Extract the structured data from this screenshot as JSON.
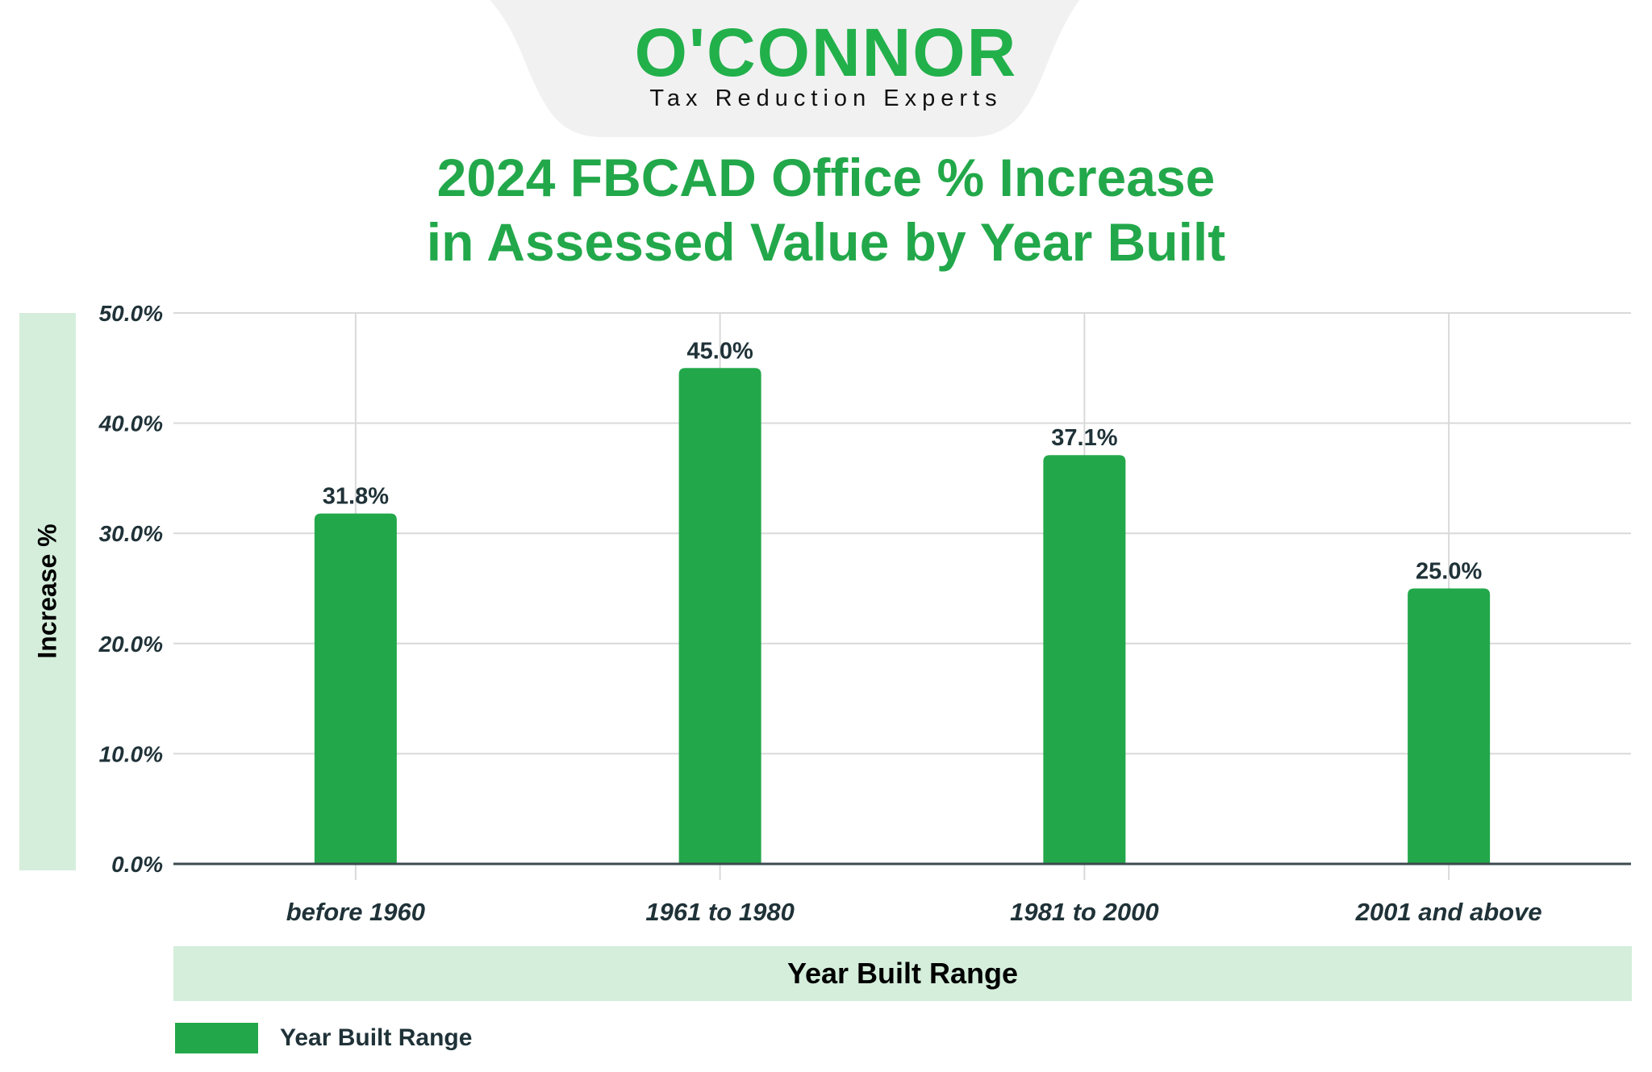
{
  "logo": {
    "name": "O'CONNOR",
    "tagline": "Tax Reduction Experts"
  },
  "colors": {
    "bar": "#22a84a",
    "title": "#22a84a",
    "band": "#d4eedb",
    "text": "#1f3238",
    "logo": "#22b04b"
  },
  "chart_data": {
    "type": "bar",
    "title_lines": [
      "2024 FBCAD Office % Increase",
      "in Assessed Value by Year Built"
    ],
    "xlabel": "Year Built Range",
    "ylabel": "Increase %",
    "categories": [
      "before 1960",
      "1961 to 1980",
      "1981 to 2000",
      "2001 and above"
    ],
    "series": [
      {
        "name": "Year Built Range",
        "values": [
          31.8,
          45.0,
          37.1,
          25.0
        ]
      }
    ],
    "data_labels": [
      "31.8%",
      "45.0%",
      "37.1%",
      "25.0%"
    ],
    "ylim": [
      0,
      50
    ],
    "yticks": [
      "0.0%",
      "10.0%",
      "20.0%",
      "30.0%",
      "40.0%",
      "50.0%"
    ],
    "grid": true,
    "legend": "bottom-left"
  }
}
